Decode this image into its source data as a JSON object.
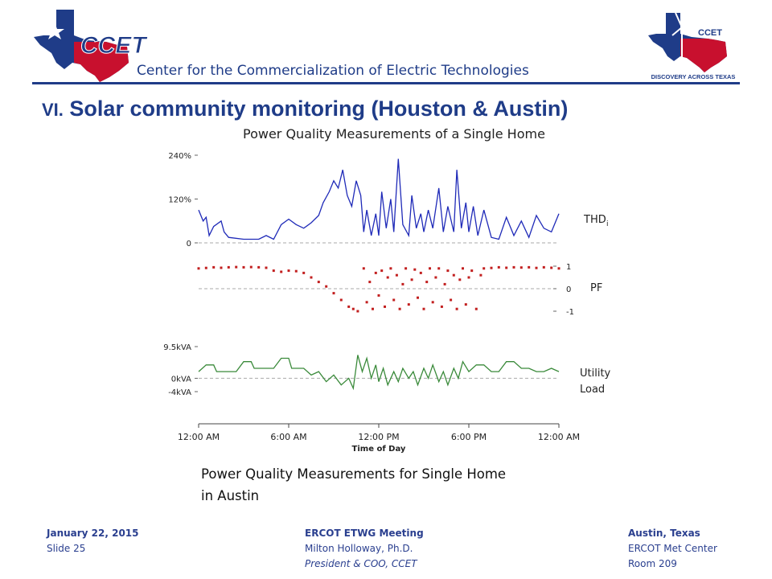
{
  "header": {
    "org_logo_text": "CCET",
    "center_name": "Center for the Commercialization of Electric Technologies",
    "right_logo_text": "CCET",
    "right_logo_tagline": "DISCOVERY ACROSS TEXAS"
  },
  "slide": {
    "section_number": "VI.",
    "title": "Solar community monitoring (Houston & Austin)",
    "caption_line1": "Power Quality Measurements for Single Home",
    "caption_line2": "in Austin"
  },
  "colors": {
    "brand_blue": "#1f3c88",
    "thd": "#1f2ab8",
    "pf": "#c21f1f",
    "load": "#3a8a3a",
    "texas_red": "#c8102e"
  },
  "chart_data": {
    "type": "line",
    "title": "Power Quality Measurements of a Single Home",
    "xlabel": "Time of Day",
    "x_ticks": [
      "12:00 AM",
      "6:00 AM",
      "12:00 PM",
      "6:00 PM",
      "12:00 AM"
    ],
    "xlim_hours": [
      0,
      24
    ],
    "panels": [
      {
        "name": "THD",
        "label": "THD",
        "label_sub": "i",
        "type": "line",
        "y_ticks": [
          "240%",
          "120%",
          "0"
        ],
        "y_tick_values": [
          240,
          120,
          0
        ],
        "ylim": [
          0,
          240
        ],
        "points": [
          [
            0,
            90
          ],
          [
            0.3,
            60
          ],
          [
            0.5,
            70
          ],
          [
            0.7,
            20
          ],
          [
            1,
            45
          ],
          [
            1.5,
            60
          ],
          [
            1.7,
            30
          ],
          [
            2,
            15
          ],
          [
            3,
            10
          ],
          [
            4,
            10
          ],
          [
            4.5,
            20
          ],
          [
            5,
            10
          ],
          [
            5.5,
            50
          ],
          [
            6,
            65
          ],
          [
            6.5,
            50
          ],
          [
            7,
            40
          ],
          [
            7.5,
            55
          ],
          [
            8,
            75
          ],
          [
            8.3,
            110
          ],
          [
            8.7,
            140
          ],
          [
            9,
            170
          ],
          [
            9.3,
            150
          ],
          [
            9.6,
            200
          ],
          [
            9.9,
            130
          ],
          [
            10.2,
            100
          ],
          [
            10.5,
            170
          ],
          [
            10.8,
            130
          ],
          [
            11,
            30
          ],
          [
            11.2,
            90
          ],
          [
            11.5,
            20
          ],
          [
            11.8,
            80
          ],
          [
            12,
            20
          ],
          [
            12.2,
            140
          ],
          [
            12.5,
            40
          ],
          [
            12.8,
            120
          ],
          [
            13,
            30
          ],
          [
            13.3,
            230
          ],
          [
            13.6,
            50
          ],
          [
            14,
            20
          ],
          [
            14.2,
            130
          ],
          [
            14.5,
            40
          ],
          [
            14.8,
            80
          ],
          [
            15,
            30
          ],
          [
            15.3,
            90
          ],
          [
            15.6,
            40
          ],
          [
            16,
            150
          ],
          [
            16.3,
            30
          ],
          [
            16.6,
            100
          ],
          [
            17,
            30
          ],
          [
            17.2,
            200
          ],
          [
            17.5,
            40
          ],
          [
            17.8,
            110
          ],
          [
            18,
            30
          ],
          [
            18.3,
            100
          ],
          [
            18.6,
            20
          ],
          [
            19,
            90
          ],
          [
            19.5,
            15
          ],
          [
            20,
            10
          ],
          [
            20.5,
            70
          ],
          [
            21,
            20
          ],
          [
            21.5,
            60
          ],
          [
            22,
            15
          ],
          [
            22.5,
            75
          ],
          [
            23,
            40
          ],
          [
            23.5,
            30
          ],
          [
            24,
            80
          ]
        ]
      },
      {
        "name": "PF",
        "label": "PF",
        "type": "scatter",
        "y_ticks": [
          "1",
          "0",
          "-1"
        ],
        "y_tick_values": [
          1,
          0,
          -1
        ],
        "ylim": [
          -1,
          1
        ],
        "points": [
          [
            0,
            0.9
          ],
          [
            0.5,
            0.92
          ],
          [
            1,
            0.95
          ],
          [
            1.5,
            0.93
          ],
          [
            2,
            0.95
          ],
          [
            2.5,
            0.96
          ],
          [
            3,
            0.95
          ],
          [
            3.5,
            0.96
          ],
          [
            4,
            0.95
          ],
          [
            4.5,
            0.93
          ],
          [
            5,
            0.8
          ],
          [
            5.5,
            0.75
          ],
          [
            6,
            0.8
          ],
          [
            6.5,
            0.78
          ],
          [
            7,
            0.7
          ],
          [
            7.5,
            0.5
          ],
          [
            8,
            0.3
          ],
          [
            8.5,
            0.1
          ],
          [
            9,
            -0.2
          ],
          [
            9.5,
            -0.5
          ],
          [
            10,
            -0.8
          ],
          [
            10.3,
            -0.9
          ],
          [
            10.6,
            -1
          ],
          [
            11,
            0.9
          ],
          [
            11.2,
            -0.6
          ],
          [
            11.4,
            0.3
          ],
          [
            11.6,
            -0.9
          ],
          [
            11.8,
            0.7
          ],
          [
            12,
            -0.3
          ],
          [
            12.2,
            0.8
          ],
          [
            12.4,
            -0.8
          ],
          [
            12.6,
            0.5
          ],
          [
            12.8,
            0.9
          ],
          [
            13,
            -0.5
          ],
          [
            13.2,
            0.6
          ],
          [
            13.4,
            -0.9
          ],
          [
            13.6,
            0.2
          ],
          [
            13.8,
            0.9
          ],
          [
            14,
            -0.7
          ],
          [
            14.2,
            0.4
          ],
          [
            14.4,
            0.85
          ],
          [
            14.6,
            -0.4
          ],
          [
            14.8,
            0.7
          ],
          [
            15,
            -0.9
          ],
          [
            15.2,
            0.3
          ],
          [
            15.4,
            0.9
          ],
          [
            15.6,
            -0.6
          ],
          [
            15.8,
            0.5
          ],
          [
            16,
            0.9
          ],
          [
            16.2,
            -0.8
          ],
          [
            16.4,
            0.2
          ],
          [
            16.6,
            0.8
          ],
          [
            16.8,
            -0.5
          ],
          [
            17,
            0.6
          ],
          [
            17.2,
            -0.9
          ],
          [
            17.4,
            0.4
          ],
          [
            17.6,
            0.9
          ],
          [
            17.8,
            -0.7
          ],
          [
            18,
            0.5
          ],
          [
            18.2,
            0.8
          ],
          [
            18.5,
            -0.9
          ],
          [
            18.8,
            0.6
          ],
          [
            19,
            0.9
          ],
          [
            19.5,
            0.92
          ],
          [
            20,
            0.95
          ],
          [
            20.5,
            0.93
          ],
          [
            21,
            0.95
          ],
          [
            21.5,
            0.94
          ],
          [
            22,
            0.95
          ],
          [
            22.5,
            0.92
          ],
          [
            23,
            0.95
          ],
          [
            23.5,
            0.93
          ],
          [
            24,
            0.9
          ]
        ]
      },
      {
        "name": "Utility Load",
        "label_line1": "Utility",
        "label_line2": "Load",
        "type": "line",
        "y_ticks": [
          "9.5kVA",
          "0kVA",
          "-4kVA"
        ],
        "y_tick_values": [
          9.5,
          0,
          -4
        ],
        "ylim": [
          -4,
          9.5
        ],
        "points": [
          [
            0,
            2
          ],
          [
            0.5,
            4
          ],
          [
            1,
            4
          ],
          [
            1.2,
            2
          ],
          [
            2,
            2
          ],
          [
            2.5,
            2
          ],
          [
            3,
            5
          ],
          [
            3.5,
            5
          ],
          [
            3.7,
            3
          ],
          [
            4,
            3
          ],
          [
            5,
            3
          ],
          [
            5.5,
            6
          ],
          [
            6,
            6
          ],
          [
            6.2,
            3
          ],
          [
            7,
            3
          ],
          [
            7.5,
            1
          ],
          [
            8,
            2
          ],
          [
            8.5,
            -1
          ],
          [
            9,
            1
          ],
          [
            9.5,
            -2
          ],
          [
            10,
            0
          ],
          [
            10.3,
            -3
          ],
          [
            10.6,
            7
          ],
          [
            10.9,
            2
          ],
          [
            11.2,
            6
          ],
          [
            11.5,
            0
          ],
          [
            11.8,
            4
          ],
          [
            12,
            -1
          ],
          [
            12.3,
            3
          ],
          [
            12.6,
            -2
          ],
          [
            13,
            2
          ],
          [
            13.3,
            -1
          ],
          [
            13.6,
            3
          ],
          [
            14,
            0
          ],
          [
            14.3,
            2
          ],
          [
            14.6,
            -2
          ],
          [
            15,
            3
          ],
          [
            15.3,
            0
          ],
          [
            15.6,
            4
          ],
          [
            16,
            -1
          ],
          [
            16.3,
            2
          ],
          [
            16.6,
            -2
          ],
          [
            17,
            3
          ],
          [
            17.3,
            0
          ],
          [
            17.6,
            5
          ],
          [
            18,
            2
          ],
          [
            18.5,
            4
          ],
          [
            19,
            4
          ],
          [
            19.5,
            2
          ],
          [
            20,
            2
          ],
          [
            20.5,
            5
          ],
          [
            21,
            5
          ],
          [
            21.5,
            3
          ],
          [
            22,
            3
          ],
          [
            22.5,
            2
          ],
          [
            23,
            2
          ],
          [
            23.5,
            3
          ],
          [
            24,
            2
          ]
        ]
      }
    ]
  },
  "footer": {
    "left": {
      "date": "January 22, 2015",
      "slide": "Slide 25"
    },
    "middle": {
      "event": "ERCOT ETWG Meeting",
      "presenter": "Milton Holloway, Ph.D.",
      "role": "President & COO, CCET"
    },
    "right": {
      "location": "Austin, Texas",
      "venue": "ERCOT Met Center",
      "room": "Room 209"
    }
  }
}
